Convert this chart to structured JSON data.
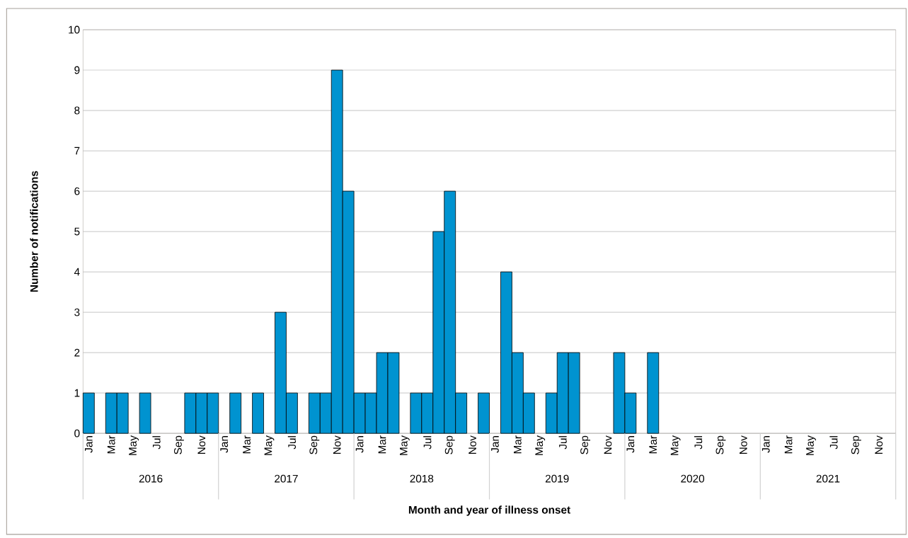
{
  "chart_data": {
    "type": "bar",
    "xlabel": "Month and year of illness onset",
    "ylabel": "Number of notifications",
    "categories": [
      "Jan",
      null,
      "Mar",
      null,
      "May",
      null,
      "Jul",
      null,
      "Sep",
      null,
      "Nov",
      null,
      "Jan",
      null,
      "Mar",
      null,
      "May",
      null,
      "Jul",
      null,
      "Sep",
      null,
      "Nov",
      null,
      "Jan",
      null,
      "Mar",
      null,
      "May",
      null,
      "Jul",
      null,
      "Sep",
      null,
      "Nov",
      null,
      "Jan",
      null,
      "Mar",
      null,
      "May",
      null,
      "Jul",
      null,
      "Sep",
      null,
      "Nov",
      null,
      "Jan",
      null,
      "Mar",
      null,
      "May",
      null,
      "Jul",
      null,
      "Sep",
      null,
      "Nov",
      null,
      "Jan",
      null,
      "Mar",
      null,
      "May",
      null,
      "Jul",
      null,
      "Sep",
      null,
      "Nov",
      null
    ],
    "values": [
      1,
      0,
      1,
      1,
      0,
      1,
      0,
      0,
      0,
      1,
      1,
      1,
      0,
      1,
      0,
      1,
      0,
      3,
      1,
      0,
      1,
      1,
      9,
      6,
      1,
      1,
      2,
      2,
      0,
      1,
      1,
      5,
      6,
      1,
      0,
      1,
      0,
      4,
      2,
      1,
      0,
      1,
      2,
      2,
      0,
      0,
      0,
      2,
      1,
      0,
      2,
      0,
      0,
      0,
      0,
      0,
      0,
      0,
      0,
      0,
      0,
      0,
      0,
      0,
      0,
      0,
      0,
      0,
      0,
      0,
      0,
      0
    ],
    "color": "#0093d0",
    "ylim": [
      0,
      10
    ],
    "yticks": [
      0,
      1,
      2,
      3,
      4,
      5,
      6,
      7,
      8,
      9,
      10
    ],
    "grid": "y",
    "annotations": [
      "2016",
      "2017",
      "2018",
      "2019",
      "2020",
      "2021"
    ]
  }
}
